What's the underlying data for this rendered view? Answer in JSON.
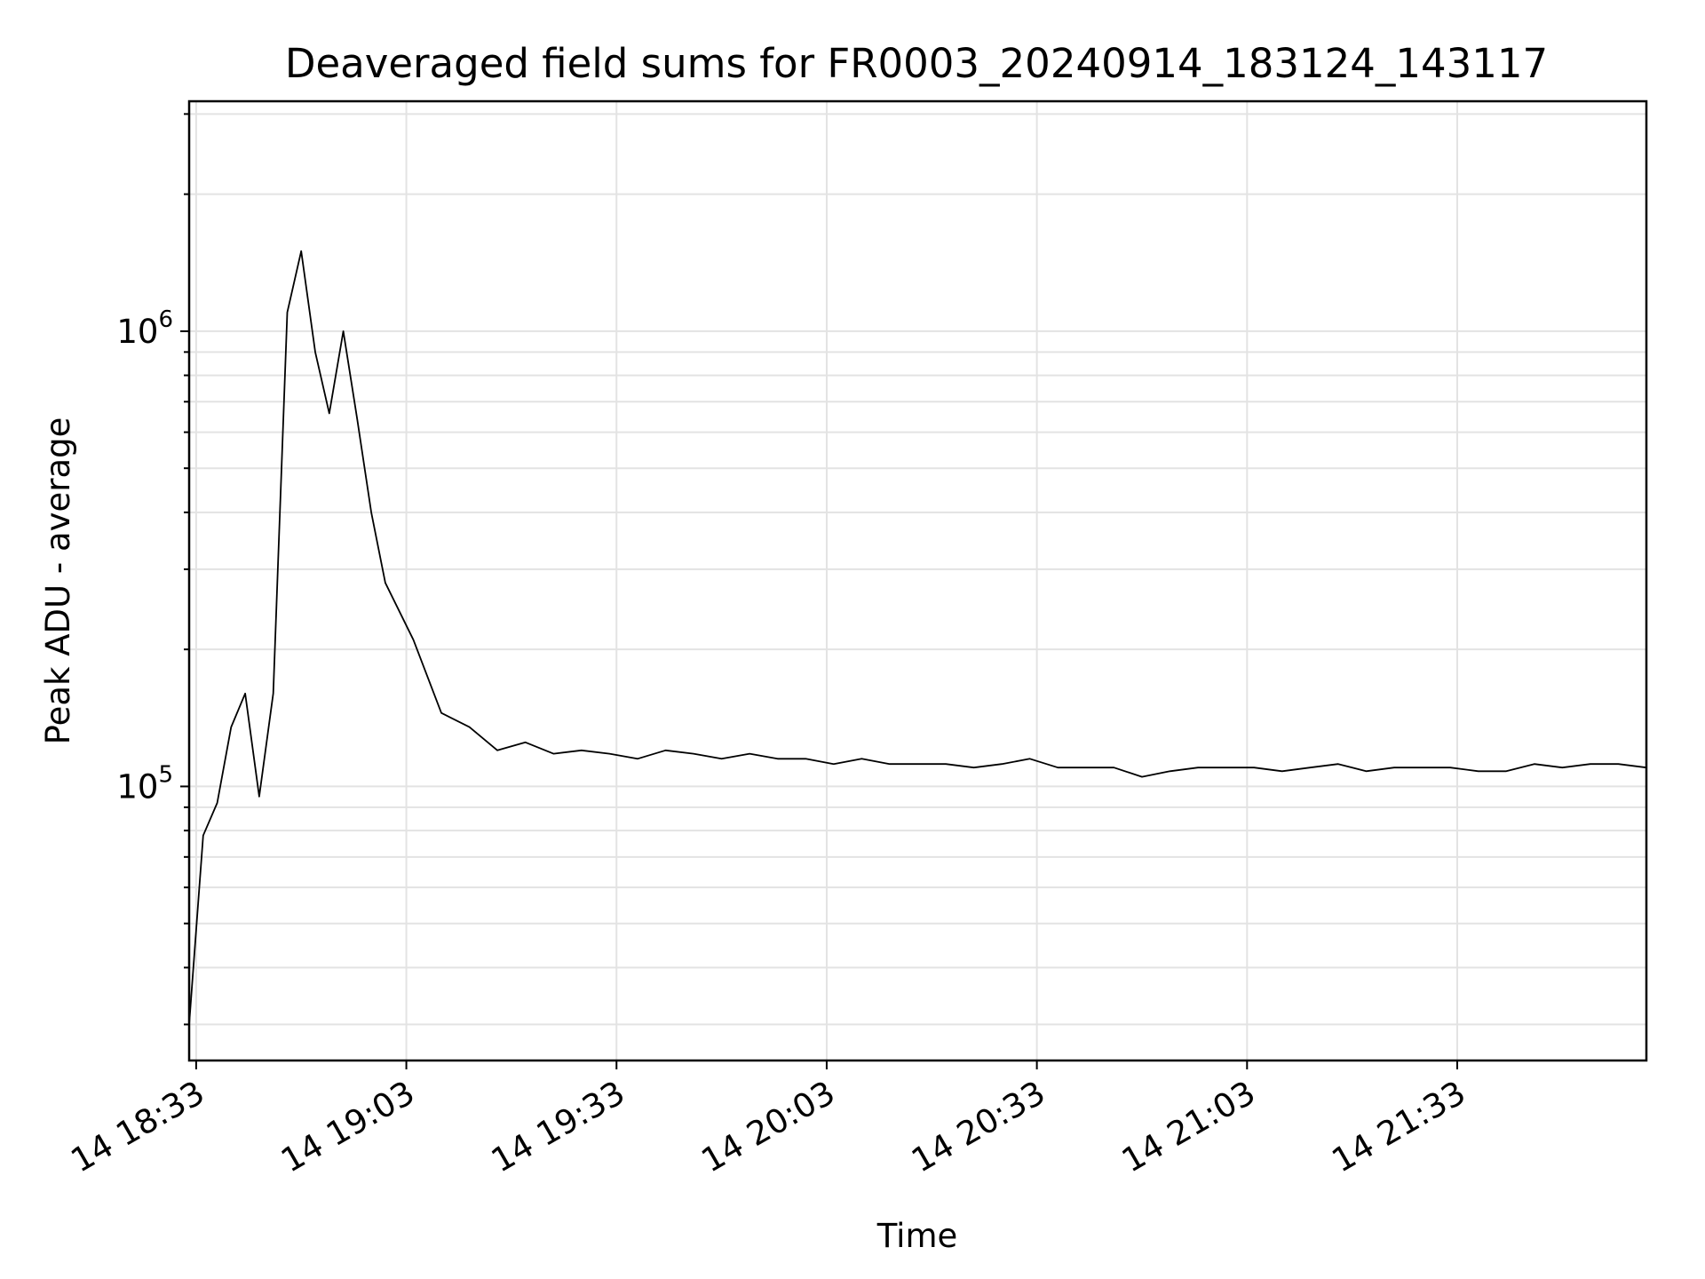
{
  "chart_data": {
    "type": "line",
    "title": "Deaveraged field sums for FR0003_20240914_183124_143117",
    "xlabel": "Time",
    "ylabel": "Peak ADU - average",
    "x_ticks": [
      "14 18:33",
      "14 19:03",
      "14 19:33",
      "14 20:03",
      "14 20:33",
      "14 21:03",
      "14 21:33"
    ],
    "y_ticks": [
      {
        "base": "10",
        "exp": "5",
        "value": 100000
      },
      {
        "base": "10",
        "exp": "6",
        "value": 1000000
      }
    ],
    "yscale": "log",
    "ylim": [
      25000,
      3200000
    ],
    "xlim": [
      "2024-09-14 18:32",
      "2024-09-14 22:00"
    ],
    "grid": true,
    "series": [
      {
        "color": "#000000",
        "x": [
          "2024-09-14 18:32",
          "2024-09-14 18:34",
          "2024-09-14 18:36",
          "2024-09-14 18:38",
          "2024-09-14 18:40",
          "2024-09-14 18:42",
          "2024-09-14 18:44",
          "2024-09-14 18:46",
          "2024-09-14 18:48",
          "2024-09-14 18:50",
          "2024-09-14 18:52",
          "2024-09-14 18:54",
          "2024-09-14 18:56",
          "2024-09-14 18:58",
          "2024-09-14 19:00",
          "2024-09-14 19:04",
          "2024-09-14 19:08",
          "2024-09-14 19:12",
          "2024-09-14 19:16",
          "2024-09-14 19:20",
          "2024-09-14 19:24",
          "2024-09-14 19:28",
          "2024-09-14 19:32",
          "2024-09-14 19:36",
          "2024-09-14 19:40",
          "2024-09-14 19:44",
          "2024-09-14 19:48",
          "2024-09-14 19:52",
          "2024-09-14 19:56",
          "2024-09-14 20:00",
          "2024-09-14 20:04",
          "2024-09-14 20:08",
          "2024-09-14 20:12",
          "2024-09-14 20:16",
          "2024-09-14 20:20",
          "2024-09-14 20:24",
          "2024-09-14 20:28",
          "2024-09-14 20:32",
          "2024-09-14 20:36",
          "2024-09-14 20:40",
          "2024-09-14 20:44",
          "2024-09-14 20:48",
          "2024-09-14 20:52",
          "2024-09-14 20:56",
          "2024-09-14 21:00",
          "2024-09-14 21:04",
          "2024-09-14 21:08",
          "2024-09-14 21:12",
          "2024-09-14 21:16",
          "2024-09-14 21:20",
          "2024-09-14 21:24",
          "2024-09-14 21:28",
          "2024-09-14 21:32",
          "2024-09-14 21:36",
          "2024-09-14 21:40",
          "2024-09-14 21:44",
          "2024-09-14 21:48",
          "2024-09-14 21:52",
          "2024-09-14 21:56",
          "2024-09-14 22:00"
        ],
        "y": [
          30000,
          78000,
          92000,
          135000,
          160000,
          95000,
          160000,
          1100000,
          1500000,
          900000,
          660000,
          1000000,
          640000,
          400000,
          280000,
          210000,
          145000,
          135000,
          120000,
          125000,
          118000,
          120000,
          118000,
          115000,
          120000,
          118000,
          115000,
          118000,
          115000,
          115000,
          112000,
          115000,
          112000,
          112000,
          112000,
          110000,
          112000,
          115000,
          110000,
          110000,
          110000,
          105000,
          108000,
          110000,
          110000,
          110000,
          108000,
          110000,
          112000,
          108000,
          110000,
          110000,
          110000,
          108000,
          108000,
          112000,
          110000,
          112000,
          112000,
          110000
        ]
      }
    ]
  }
}
